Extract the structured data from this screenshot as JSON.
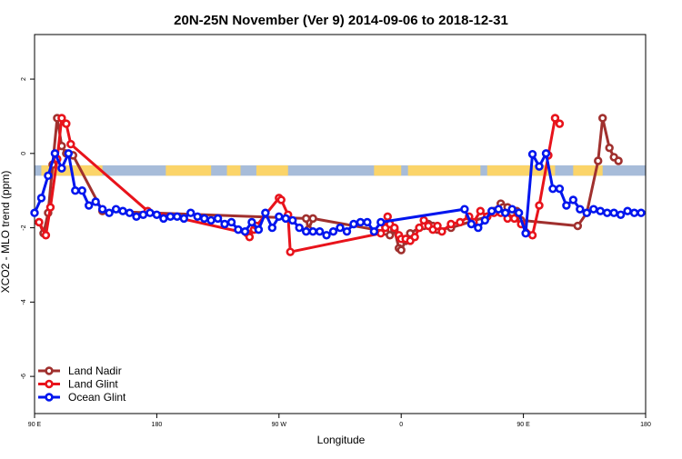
{
  "chart_data": {
    "type": "line",
    "title": "20N-25N November (Ver 9)   2014-09-06 to 2018-12-31",
    "xlabel": "Longitude",
    "ylabel": "XCO2 - MLO trend (ppm)",
    "xlim": [
      -90,
      180
    ],
    "ylim": [
      -7,
      3.2
    ],
    "x_ticks": [
      {
        "value": -90,
        "label": "90 E"
      },
      {
        "value": -36,
        "label": "180"
      },
      {
        "value": 18,
        "label": "90 W"
      },
      {
        "value": 72,
        "label": "0"
      },
      {
        "value": 126,
        "label": "90 E"
      },
      {
        "value": 180,
        "label": "180"
      }
    ],
    "y_ticks": [
      {
        "value": 2,
        "label": "2"
      },
      {
        "value": 0,
        "label": "0"
      },
      {
        "value": -2,
        "label": "-2"
      },
      {
        "value": -4,
        "label": "-4"
      },
      {
        "value": -6,
        "label": "-6"
      }
    ],
    "land_band": {
      "y_top": -0.32,
      "y_bottom": -0.6,
      "ocean_color": "#a7bcd9",
      "land_color": "#fbd469",
      "land_spans": [
        [
          -87,
          -60
        ],
        [
          -32,
          -12
        ],
        [
          -5,
          1
        ],
        [
          8,
          22
        ],
        [
          60,
          72
        ],
        [
          75,
          107
        ],
        [
          110,
          140
        ],
        [
          148,
          161
        ]
      ]
    },
    "series": [
      {
        "name": "Land Nadir",
        "color": "#a0302e",
        "x": [
          -88,
          -86,
          -84,
          -82,
          -80,
          -78,
          -76,
          -73,
          -60,
          30,
          31,
          33,
          65,
          67,
          69,
          71,
          72,
          74,
          76,
          80,
          82,
          84,
          86,
          88,
          94,
          110,
          113,
          116,
          117,
          119,
          121,
          123,
          125,
          150,
          154,
          159,
          161,
          164,
          166,
          168
        ],
        "y": [
          -1.85,
          -2.15,
          -1.6,
          -0.3,
          0.95,
          0.2,
          0.0,
          -0.05,
          -1.55,
          -1.75,
          -2.05,
          -1.75,
          -2.1,
          -2.2,
          -2.05,
          -2.55,
          -2.6,
          -2.35,
          -2.15,
          -2.0,
          -1.95,
          -1.9,
          -1.95,
          -2.05,
          -2.0,
          -1.7,
          -1.55,
          -1.35,
          -1.45,
          -1.45,
          -1.6,
          -1.55,
          -1.8,
          -1.95,
          -1.6,
          -0.2,
          0.95,
          0.15,
          -0.1,
          -0.2
        ]
      },
      {
        "name": "Land Glint",
        "color": "#e8131b",
        "x": [
          -88,
          -85,
          -83,
          -80,
          -78,
          -76,
          -74,
          -40,
          4,
          5,
          7,
          8,
          18,
          19,
          22,
          23,
          63,
          65,
          66,
          67,
          69,
          71,
          72,
          74,
          76,
          78,
          80,
          82,
          84,
          86,
          88,
          90,
          94,
          98,
          102,
          104,
          107,
          110,
          113,
          116,
          119,
          122,
          125,
          130,
          133,
          137,
          140,
          142
        ],
        "y": [
          -1.85,
          -2.2,
          -1.45,
          -0.15,
          0.95,
          0.8,
          0.25,
          -1.55,
          -2.15,
          -2.25,
          -2.05,
          -1.95,
          -1.2,
          -1.25,
          -1.65,
          -2.65,
          -2.15,
          -2.0,
          -1.7,
          -1.9,
          -2.0,
          -2.2,
          -2.3,
          -2.3,
          -2.35,
          -2.25,
          -2.0,
          -1.8,
          -1.95,
          -2.05,
          -1.95,
          -2.1,
          -1.9,
          -1.85,
          -1.7,
          -1.85,
          -1.55,
          -1.7,
          -1.6,
          -1.6,
          -1.75,
          -1.75,
          -1.9,
          -2.2,
          -1.4,
          -0.05,
          0.95,
          0.8
        ]
      },
      {
        "name": "Ocean Glint",
        "color": "#0015ee",
        "x": [
          -90,
          -87,
          -84,
          -81,
          -78,
          -75,
          -72,
          -69,
          -66,
          -63,
          -60,
          -57,
          -54,
          -51,
          -48,
          -45,
          -42,
          -39,
          -36,
          -33,
          -30,
          -27,
          -24,
          -21,
          -18,
          -15,
          -12,
          -9,
          -6,
          -3,
          0,
          3,
          6,
          9,
          12,
          15,
          18,
          21,
          24,
          27,
          30,
          33,
          36,
          39,
          42,
          45,
          48,
          51,
          54,
          57,
          60,
          63,
          100,
          103,
          106,
          109,
          112,
          115,
          118,
          121,
          124,
          127,
          130,
          133,
          136,
          139,
          142,
          145,
          148,
          151,
          154,
          157,
          160,
          163,
          166,
          169,
          172,
          175,
          178
        ],
        "y": [
          -1.6,
          -1.2,
          -0.6,
          0.0,
          -0.4,
          0.0,
          -1.0,
          -1.0,
          -1.4,
          -1.3,
          -1.5,
          -1.6,
          -1.5,
          -1.55,
          -1.6,
          -1.7,
          -1.65,
          -1.6,
          -1.65,
          -1.75,
          -1.7,
          -1.7,
          -1.75,
          -1.6,
          -1.7,
          -1.75,
          -1.8,
          -1.75,
          -1.9,
          -1.85,
          -2.05,
          -2.1,
          -1.85,
          -2.05,
          -1.6,
          -2.0,
          -1.7,
          -1.75,
          -1.8,
          -2.0,
          -2.1,
          -2.1,
          -2.1,
          -2.2,
          -2.1,
          -2.0,
          -2.1,
          -1.9,
          -1.85,
          -1.85,
          -2.1,
          -1.85,
          -1.5,
          -1.9,
          -2.0,
          -1.8,
          -1.55,
          -1.5,
          -1.6,
          -1.5,
          -1.6,
          -2.15,
          -0.02,
          -0.35,
          0.0,
          -0.95,
          -0.95,
          -1.4,
          -1.25,
          -1.5,
          -1.6,
          -1.5,
          -1.55,
          -1.6,
          -1.6,
          -1.65,
          -1.55,
          -1.6,
          -1.6
        ]
      }
    ],
    "legend": {
      "position": "bottom-left",
      "entries": [
        "Land Nadir",
        "Land Glint",
        "Ocean Glint"
      ]
    },
    "grid": false
  }
}
